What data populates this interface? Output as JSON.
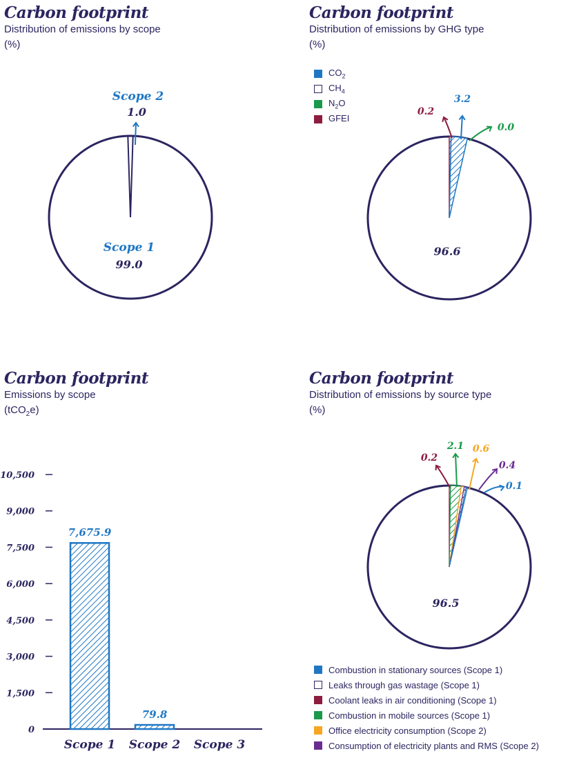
{
  "colors": {
    "ink": "#2b2560",
    "blue": "#1f77c4",
    "green": "#1a9a4a",
    "maroon": "#8c1d3f",
    "orange": "#f6a623",
    "purple": "#6a2c91"
  },
  "panels": [
    {
      "title": "Carbon footprint",
      "subtitle": "Distribution of emissions by scope",
      "unit": "(%)"
    },
    {
      "title": "Carbon footprint",
      "subtitle": "Distribution of emissions by GHG type",
      "unit": "(%)"
    },
    {
      "title": "Carbon footprint",
      "subtitle": "Emissions by scope",
      "unit_pre": "(tCO",
      "unit_sub": "2",
      "unit_post": "e)"
    },
    {
      "title": "Carbon footprint",
      "subtitle": "Distribution of emissions by source type",
      "unit": "(%)"
    }
  ],
  "legend_ghg": [
    {
      "pre": "CO",
      "sub": "2",
      "post": "",
      "color": "#1f77c4",
      "outline": false
    },
    {
      "pre": "CH",
      "sub": "4",
      "post": "",
      "color": "#ffffff",
      "outline": true
    },
    {
      "pre": "N",
      "sub": "2",
      "post": "O",
      "color": "#1a9a4a",
      "outline": false
    },
    {
      "pre": "GFEI",
      "sub": "",
      "post": "",
      "color": "#8c1d3f",
      "outline": false
    }
  ],
  "legend_source": [
    {
      "label": "Combustion in stationary sources (Scope 1)",
      "color": "#1f77c4",
      "outline": false
    },
    {
      "label": "Leaks through gas wastage (Scope 1)",
      "color": "#ffffff",
      "outline": true
    },
    {
      "label": "Coolant leaks in air conditioning (Scope 1)",
      "color": "#8c1d3f",
      "outline": false
    },
    {
      "label": "Combustion in mobile sources (Scope 1)",
      "color": "#1a9a4a",
      "outline": false
    },
    {
      "label": "Office electricity consumption (Scope 2)",
      "color": "#f6a623",
      "outline": false
    },
    {
      "label": "Consumption of electricity plants and RMS (Scope 2)",
      "color": "#6a2c91",
      "outline": false
    }
  ],
  "chart_data": [
    {
      "type": "pie",
      "title": "Carbon footprint",
      "subtitle": "Distribution of emissions by scope",
      "unit": "(%)",
      "slices": [
        {
          "label": "Scope 1",
          "value": 99.0,
          "value_label": "99.0"
        },
        {
          "label": "Scope 2",
          "value": 1.0,
          "value_label": "1.0"
        }
      ]
    },
    {
      "type": "pie",
      "title": "Carbon footprint",
      "subtitle": "Distribution of emissions by GHG type",
      "unit": "(%)",
      "slices": [
        {
          "label": "CH4",
          "value": 96.6,
          "value_label": "96.6"
        },
        {
          "label": "GFEI",
          "value": 0.2,
          "value_label": "0.2"
        },
        {
          "label": "CO2",
          "value": 3.2,
          "value_label": "3.2"
        },
        {
          "label": "N2O",
          "value": 0.0,
          "value_label": "0.0"
        }
      ]
    },
    {
      "type": "bar",
      "title": "Carbon footprint",
      "subtitle": "Emissions by scope",
      "unit": "(tCO2e)",
      "categories": [
        "Scope 1",
        "Scope 2",
        "Scope 3"
      ],
      "values": [
        7675.9,
        79.8,
        0
      ],
      "value_labels": [
        "7,675.9",
        "79.8",
        ""
      ],
      "ylim": [
        0,
        10500
      ],
      "yticks": [
        0,
        1500,
        3000,
        4500,
        6000,
        7500,
        9000,
        10500
      ],
      "ytick_labels": [
        "0",
        "1,500",
        "3,000",
        "4,500",
        "6,000",
        "7,500",
        "9,000",
        "10,500"
      ]
    },
    {
      "type": "pie",
      "title": "Carbon footprint",
      "subtitle": "Distribution of emissions by source type",
      "unit": "(%)",
      "slices": [
        {
          "label": "Leaks through gas wastage (Scope 1)",
          "value": 96.5,
          "value_label": "96.5"
        },
        {
          "label": "Coolant leaks in air conditioning (Scope 1)",
          "value": 0.2,
          "value_label": "0.2"
        },
        {
          "label": "Combustion in mobile sources (Scope 1)",
          "value": 2.1,
          "value_label": "2.1"
        },
        {
          "label": "Office electricity consumption (Scope 2)",
          "value": 0.6,
          "value_label": "0.6"
        },
        {
          "label": "Consumption of electricity plants and RMS (Scope 2)",
          "value": 0.4,
          "value_label": "0.4"
        },
        {
          "label": "Combustion in stationary sources (Scope 1)",
          "value": 0.1,
          "value_label": "0.1"
        }
      ]
    }
  ]
}
